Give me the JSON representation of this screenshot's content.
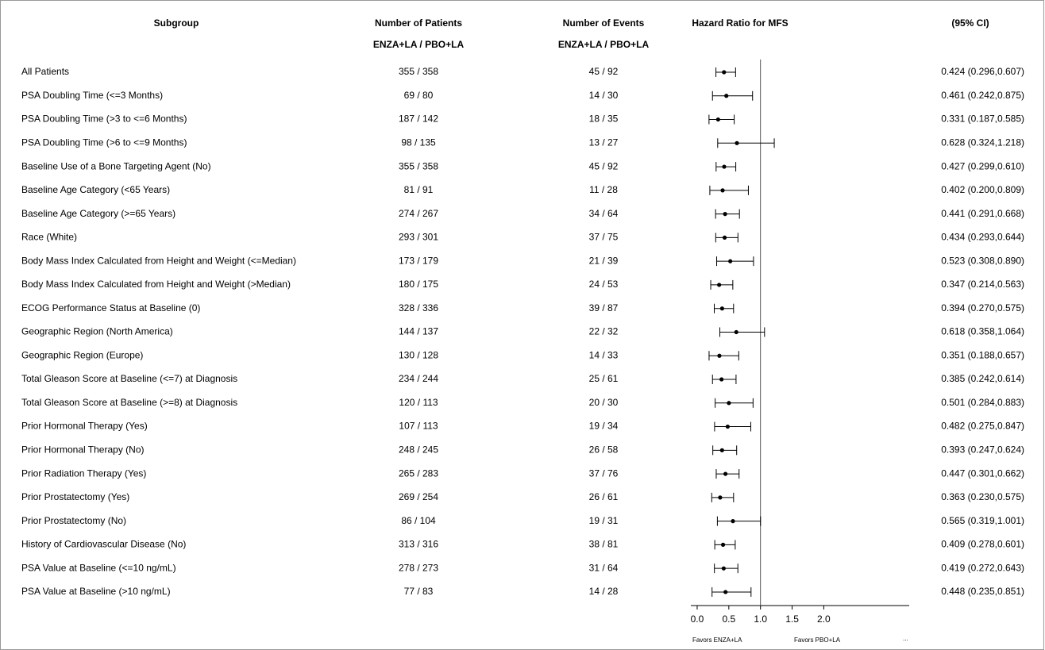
{
  "chart_data": {
    "type": "forest",
    "headers": {
      "subgroup": "Subgroup",
      "patients": "Number of Patients",
      "patients_sub": "ENZA+LA / PBO+LA",
      "events": "Number of Events",
      "events_sub": "ENZA+LA / PBO+LA",
      "hr": "Hazard Ratio for MFS",
      "ci": "(95% CI)"
    },
    "categories": [
      "All Patients",
      "PSA Doubling Time (<=3 Months)",
      "PSA Doubling Time (>3 to <=6 Months)",
      "PSA Doubling Time (>6 to <=9 Months)",
      "Baseline Use of a Bone Targeting Agent (No)",
      "Baseline Age Category (<65 Years)",
      "Baseline Age Category (>=65 Years)",
      "Race (White)",
      "Body Mass Index Calculated from Height and Weight (<=Median)",
      "Body Mass Index Calculated from Height and Weight (>Median)",
      "ECOG Performance Status at Baseline (0)",
      "Geographic Region (North America)",
      "Geographic Region (Europe)",
      "Total Gleason Score at Baseline (<=7) at Diagnosis",
      "Total Gleason Score at Baseline (>=8) at Diagnosis",
      "Prior Hormonal Therapy (Yes)",
      "Prior Hormonal Therapy (No)",
      "Prior Radiation Therapy (Yes)",
      "Prior Prostatectomy (Yes)",
      "Prior Prostatectomy (No)",
      "History of Cardiovascular Disease (No)",
      "PSA Value at Baseline (<=10 ng/mL)",
      "PSA Value at Baseline (>10 ng/mL)"
    ],
    "patients": [
      "355 / 358",
      "69 / 80",
      "187 / 142",
      "98 / 135",
      "355 / 358",
      "81 / 91",
      "274 / 267",
      "293 / 301",
      "173 / 179",
      "180 / 175",
      "328 / 336",
      "144 / 137",
      "130 / 128",
      "234 / 244",
      "120 / 113",
      "107 / 113",
      "248 / 245",
      "265 / 283",
      "269 / 254",
      "86 / 104",
      "313 / 316",
      "278 / 273",
      "77 / 83"
    ],
    "events": [
      "45 / 92",
      "14 / 30",
      "18 / 35",
      "13 / 27",
      "45 / 92",
      "11 / 28",
      "34 / 64",
      "37 / 75",
      "21 / 39",
      "24 / 53",
      "39 / 87",
      "22 / 32",
      "14 / 33",
      "25 / 61",
      "20 / 30",
      "19 / 34",
      "26 / 58",
      "37 / 76",
      "26 / 61",
      "19 / 31",
      "38 / 81",
      "31 / 64",
      "14 / 28"
    ],
    "values": [
      0.424,
      0.461,
      0.331,
      0.628,
      0.427,
      0.402,
      0.441,
      0.434,
      0.523,
      0.347,
      0.394,
      0.618,
      0.351,
      0.385,
      0.501,
      0.482,
      0.393,
      0.447,
      0.363,
      0.565,
      0.409,
      0.419,
      0.448
    ],
    "lower": [
      0.296,
      0.242,
      0.187,
      0.324,
      0.299,
      0.2,
      0.291,
      0.293,
      0.308,
      0.214,
      0.27,
      0.358,
      0.188,
      0.242,
      0.284,
      0.275,
      0.247,
      0.301,
      0.23,
      0.319,
      0.278,
      0.272,
      0.235
    ],
    "upper": [
      0.607,
      0.875,
      0.585,
      1.218,
      0.61,
      0.809,
      0.668,
      0.644,
      0.89,
      0.563,
      0.575,
      1.064,
      0.657,
      0.614,
      0.883,
      0.847,
      0.624,
      0.662,
      0.575,
      1.001,
      0.601,
      0.643,
      0.851
    ],
    "value_labels": [
      "0.424 (0.296,0.607)",
      "0.461 (0.242,0.875)",
      "0.331 (0.187,0.585)",
      "0.628 (0.324,1.218)",
      "0.427 (0.299,0.610)",
      "0.402 (0.200,0.809)",
      "0.441 (0.291,0.668)",
      "0.434 (0.293,0.644)",
      "0.523 (0.308,0.890)",
      "0.347 (0.214,0.563)",
      "0.394 (0.270,0.575)",
      "0.618 (0.358,1.064)",
      "0.351 (0.188,0.657)",
      "0.385 (0.242,0.614)",
      "0.501 (0.284,0.883)",
      "0.482 (0.275,0.847)",
      "0.393 (0.247,0.624)",
      "0.447 (0.301,0.662)",
      "0.363 (0.230,0.575)",
      "0.565 (0.319,1.001)",
      "0.409 (0.278,0.601)",
      "0.419 (0.272,0.643)",
      "0.448 (0.235,0.851)"
    ],
    "reference": 1,
    "xlim": [
      -0.1,
      3.35
    ],
    "xticks": [
      {
        "value": 0,
        "label": "0.0"
      },
      {
        "value": 0.5,
        "label": "0.5"
      },
      {
        "value": 1,
        "label": "1.0"
      },
      {
        "value": 1.5,
        "label": "1.5"
      },
      {
        "value": 2,
        "label": "2.0"
      }
    ],
    "favors_left": "Favors ENZA+LA",
    "favors_right": "Favors PBO+LA",
    "ellipsis": "...",
    "color": "#000000"
  }
}
